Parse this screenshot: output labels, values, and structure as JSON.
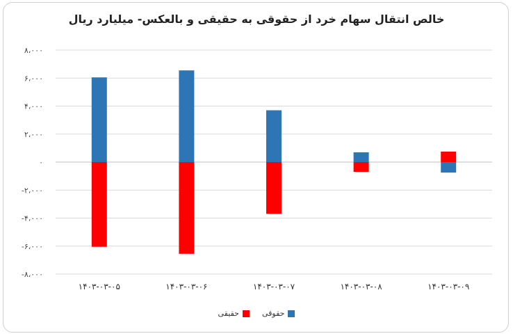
{
  "chart_data": {
    "type": "bar",
    "title": "خالص انتقال سهام خرد از حقوقی به حقیقی و بالعکس- میلیارد ریال",
    "categories": [
      "۱۴۰۳-۰۳-۰۵",
      "۱۴۰۳-۰۳-۰۶",
      "۱۴۰۳-۰۳-۰۷",
      "۱۴۰۳-۰۳-۰۸",
      "۱۴۰۳-۰۳-۰۹"
    ],
    "series": [
      {
        "name": "حقوقی",
        "color": "#2e75b6",
        "values": [
          6050,
          6550,
          3700,
          700,
          -750
        ]
      },
      {
        "name": "حقیقی",
        "color": "#ff0000",
        "values": [
          -6050,
          -6550,
          -3700,
          -700,
          750
        ]
      }
    ],
    "ylim": [
      -8000,
      8000
    ],
    "yticks": [
      8000,
      6000,
      4000,
      2000,
      0,
      -2000,
      -4000,
      -6000,
      -8000
    ],
    "ytick_labels": [
      "۸،۰۰۰",
      "۶،۰۰۰",
      "۴،۰۰۰",
      "۲،۰۰۰",
      "۰",
      "-۲،۰۰۰",
      "-۴،۰۰۰",
      "-۶،۰۰۰",
      "-۸،۰۰۰"
    ],
    "grid": true,
    "legend_position": "bottom"
  }
}
